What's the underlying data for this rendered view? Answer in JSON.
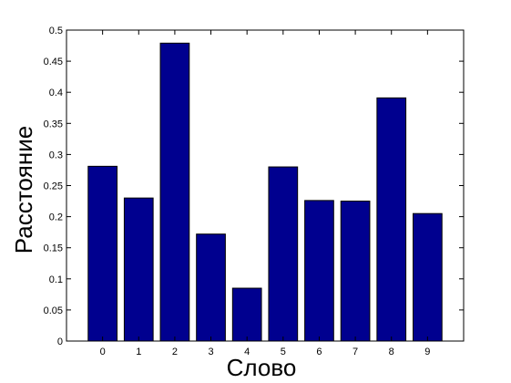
{
  "chart_data": {
    "type": "bar",
    "categories": [
      "0",
      "1",
      "2",
      "3",
      "4",
      "5",
      "6",
      "7",
      "8",
      "9"
    ],
    "values": [
      0.281,
      0.23,
      0.479,
      0.172,
      0.085,
      0.28,
      0.226,
      0.225,
      0.391,
      0.205
    ],
    "xlabel": "Слово",
    "ylabel": "Расстояние",
    "ylim": [
      0,
      0.5
    ],
    "yticks": [
      "0",
      "0.05",
      "0.1",
      "0.15",
      "0.2",
      "0.25",
      "0.3",
      "0.35",
      "0.4",
      "0.45",
      "0.5"
    ],
    "ytick_values": [
      0,
      0.05,
      0.1,
      0.15,
      0.2,
      0.25,
      0.3,
      0.35,
      0.4,
      0.45,
      0.5
    ],
    "bar_color": "#00008f",
    "grid": false
  }
}
